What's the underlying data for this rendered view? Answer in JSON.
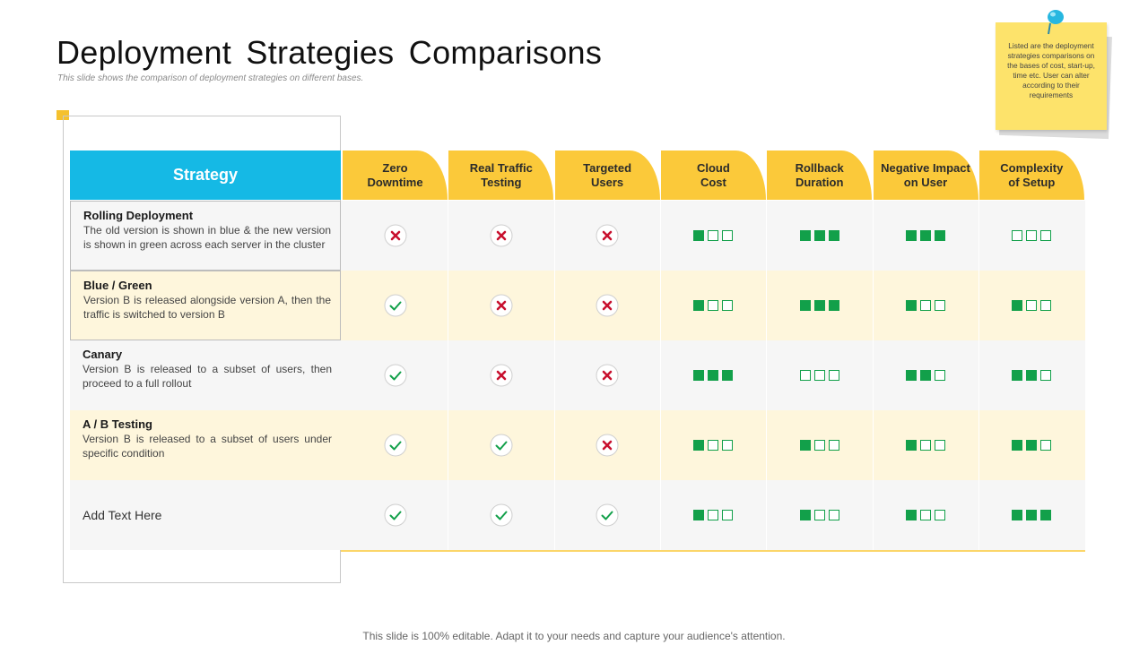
{
  "title": "Deployment Strategies Comparisons",
  "subtitle": "This slide shows the comparison of deployment strategies on different bases.",
  "note": "Listed are the deployment strategies comparisons on the bases of cost, start-up, time etc. User can alter according to their requirements",
  "header": {
    "strategy": "Strategy",
    "columns": [
      {
        "l1": "Zero",
        "l2": "Downtime"
      },
      {
        "l1": "Real Traffic",
        "l2": "Testing"
      },
      {
        "l1": "Targeted",
        "l2": "Users"
      },
      {
        "l1": "Cloud",
        "l2": "Cost"
      },
      {
        "l1": "Rollback",
        "l2": "Duration"
      },
      {
        "l1": "Negative Impact",
        "l2": "on User"
      },
      {
        "l1": "Complexity",
        "l2": "of Setup"
      }
    ]
  },
  "rows": [
    {
      "name": "Rolling Deployment",
      "desc": "The old version is shown in blue & the new version is shown in green across each server in the cluster",
      "checks": [
        "no",
        "no",
        "no"
      ],
      "levels": [
        1,
        3,
        3,
        0
      ]
    },
    {
      "name": "Blue / Green",
      "desc": "Version B is released alongside version A, then the traffic is switched to version B",
      "checks": [
        "yes",
        "no",
        "no"
      ],
      "levels": [
        1,
        3,
        1,
        1
      ]
    },
    {
      "name": "Canary",
      "desc": "Version B is released to a subset of users, then proceed to a full rollout",
      "checks": [
        "yes",
        "no",
        "no"
      ],
      "levels": [
        3,
        0,
        2,
        2
      ]
    },
    {
      "name": "A / B Testing",
      "desc": "Version B is released to a subset of users under specific condition",
      "checks": [
        "yes",
        "yes",
        "no"
      ],
      "levels": [
        1,
        1,
        1,
        2
      ]
    },
    {
      "name": "Add Text Here",
      "desc": "",
      "checks": [
        "yes",
        "yes",
        "yes"
      ],
      "levels": [
        1,
        1,
        1,
        3
      ]
    }
  ],
  "colors": {
    "accent_blue": "#15b9e5",
    "accent_yellow": "#fbc93a",
    "check_green": "#12a04a",
    "cross_red": "#c8102e"
  },
  "footer": "This slide is 100% editable. Adapt it to your needs and capture your audience's attention."
}
